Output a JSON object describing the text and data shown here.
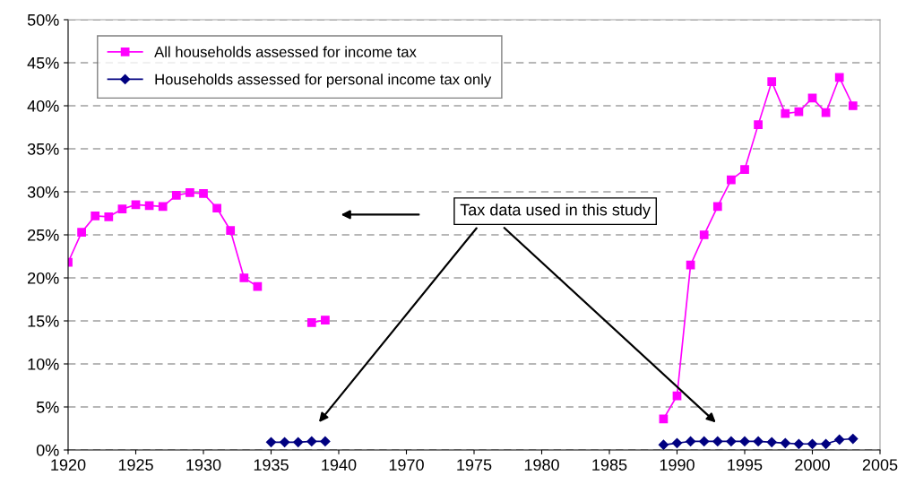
{
  "chart_data": {
    "type": "line",
    "categories": [
      "1920",
      null,
      null,
      null,
      null,
      "1925",
      null,
      null,
      null,
      null,
      "1930",
      null,
      null,
      null,
      null,
      "1935",
      null,
      null,
      null,
      null,
      "1940",
      null,
      null,
      null,
      null,
      "1970",
      null,
      null,
      null,
      null,
      "1975",
      null,
      null,
      null,
      null,
      "1980",
      null,
      null,
      null,
      null,
      "1985",
      null,
      null,
      null,
      null,
      "1990",
      null,
      null,
      null,
      null,
      "1995",
      null,
      null,
      null,
      null,
      "2000",
      null,
      null,
      null,
      null,
      "2005"
    ],
    "series": [
      {
        "name": "All households assessed for income tax",
        "color": "#ff00ff",
        "marker": "square",
        "values": [
          21.8,
          25.3,
          27.2,
          27.1,
          28.0,
          28.5,
          28.4,
          28.3,
          29.6,
          29.9,
          29.8,
          28.1,
          25.5,
          20.0,
          19.0,
          null,
          null,
          null,
          14.8,
          15.1,
          null,
          null,
          null,
          null,
          null,
          null,
          null,
          null,
          null,
          null,
          null,
          null,
          null,
          null,
          null,
          null,
          null,
          null,
          null,
          null,
          null,
          null,
          null,
          null,
          3.6,
          6.3,
          21.5,
          25.0,
          28.3,
          31.4,
          32.6,
          37.8,
          42.8,
          39.1,
          39.3,
          40.9,
          39.2,
          43.3,
          40.0,
          null,
          null
        ]
      },
      {
        "name": "Households assessed for personal income tax only",
        "color": "#000080",
        "marker": "diamond",
        "values": [
          null,
          null,
          null,
          null,
          null,
          null,
          null,
          null,
          null,
          null,
          null,
          null,
          null,
          null,
          null,
          0.9,
          0.9,
          0.9,
          1.0,
          1.0,
          null,
          null,
          null,
          null,
          null,
          null,
          null,
          null,
          null,
          null,
          null,
          null,
          null,
          null,
          null,
          null,
          null,
          null,
          null,
          null,
          null,
          null,
          null,
          null,
          0.6,
          0.8,
          1.0,
          1.0,
          1.0,
          1.0,
          1.0,
          1.0,
          0.9,
          0.8,
          0.7,
          0.7,
          0.7,
          1.2,
          1.3,
          null,
          null
        ]
      }
    ],
    "ylim": [
      0,
      50
    ],
    "yticks": [
      {
        "value": 0,
        "label": "0%"
      },
      {
        "value": 5,
        "label": "5%"
      },
      {
        "value": 10,
        "label": "10%"
      },
      {
        "value": 15,
        "label": "15%"
      },
      {
        "value": 20,
        "label": "20%"
      },
      {
        "value": 25,
        "label": "25%"
      },
      {
        "value": 30,
        "label": "30%"
      },
      {
        "value": 35,
        "label": "35%"
      },
      {
        "value": 40,
        "label": "40%"
      },
      {
        "value": 45,
        "label": "45%"
      },
      {
        "value": 50,
        "label": "50%"
      }
    ],
    "grid": "y",
    "legend": "top left",
    "line_style": "solid",
    "annotations": [
      "Tax data used in this study"
    ]
  }
}
